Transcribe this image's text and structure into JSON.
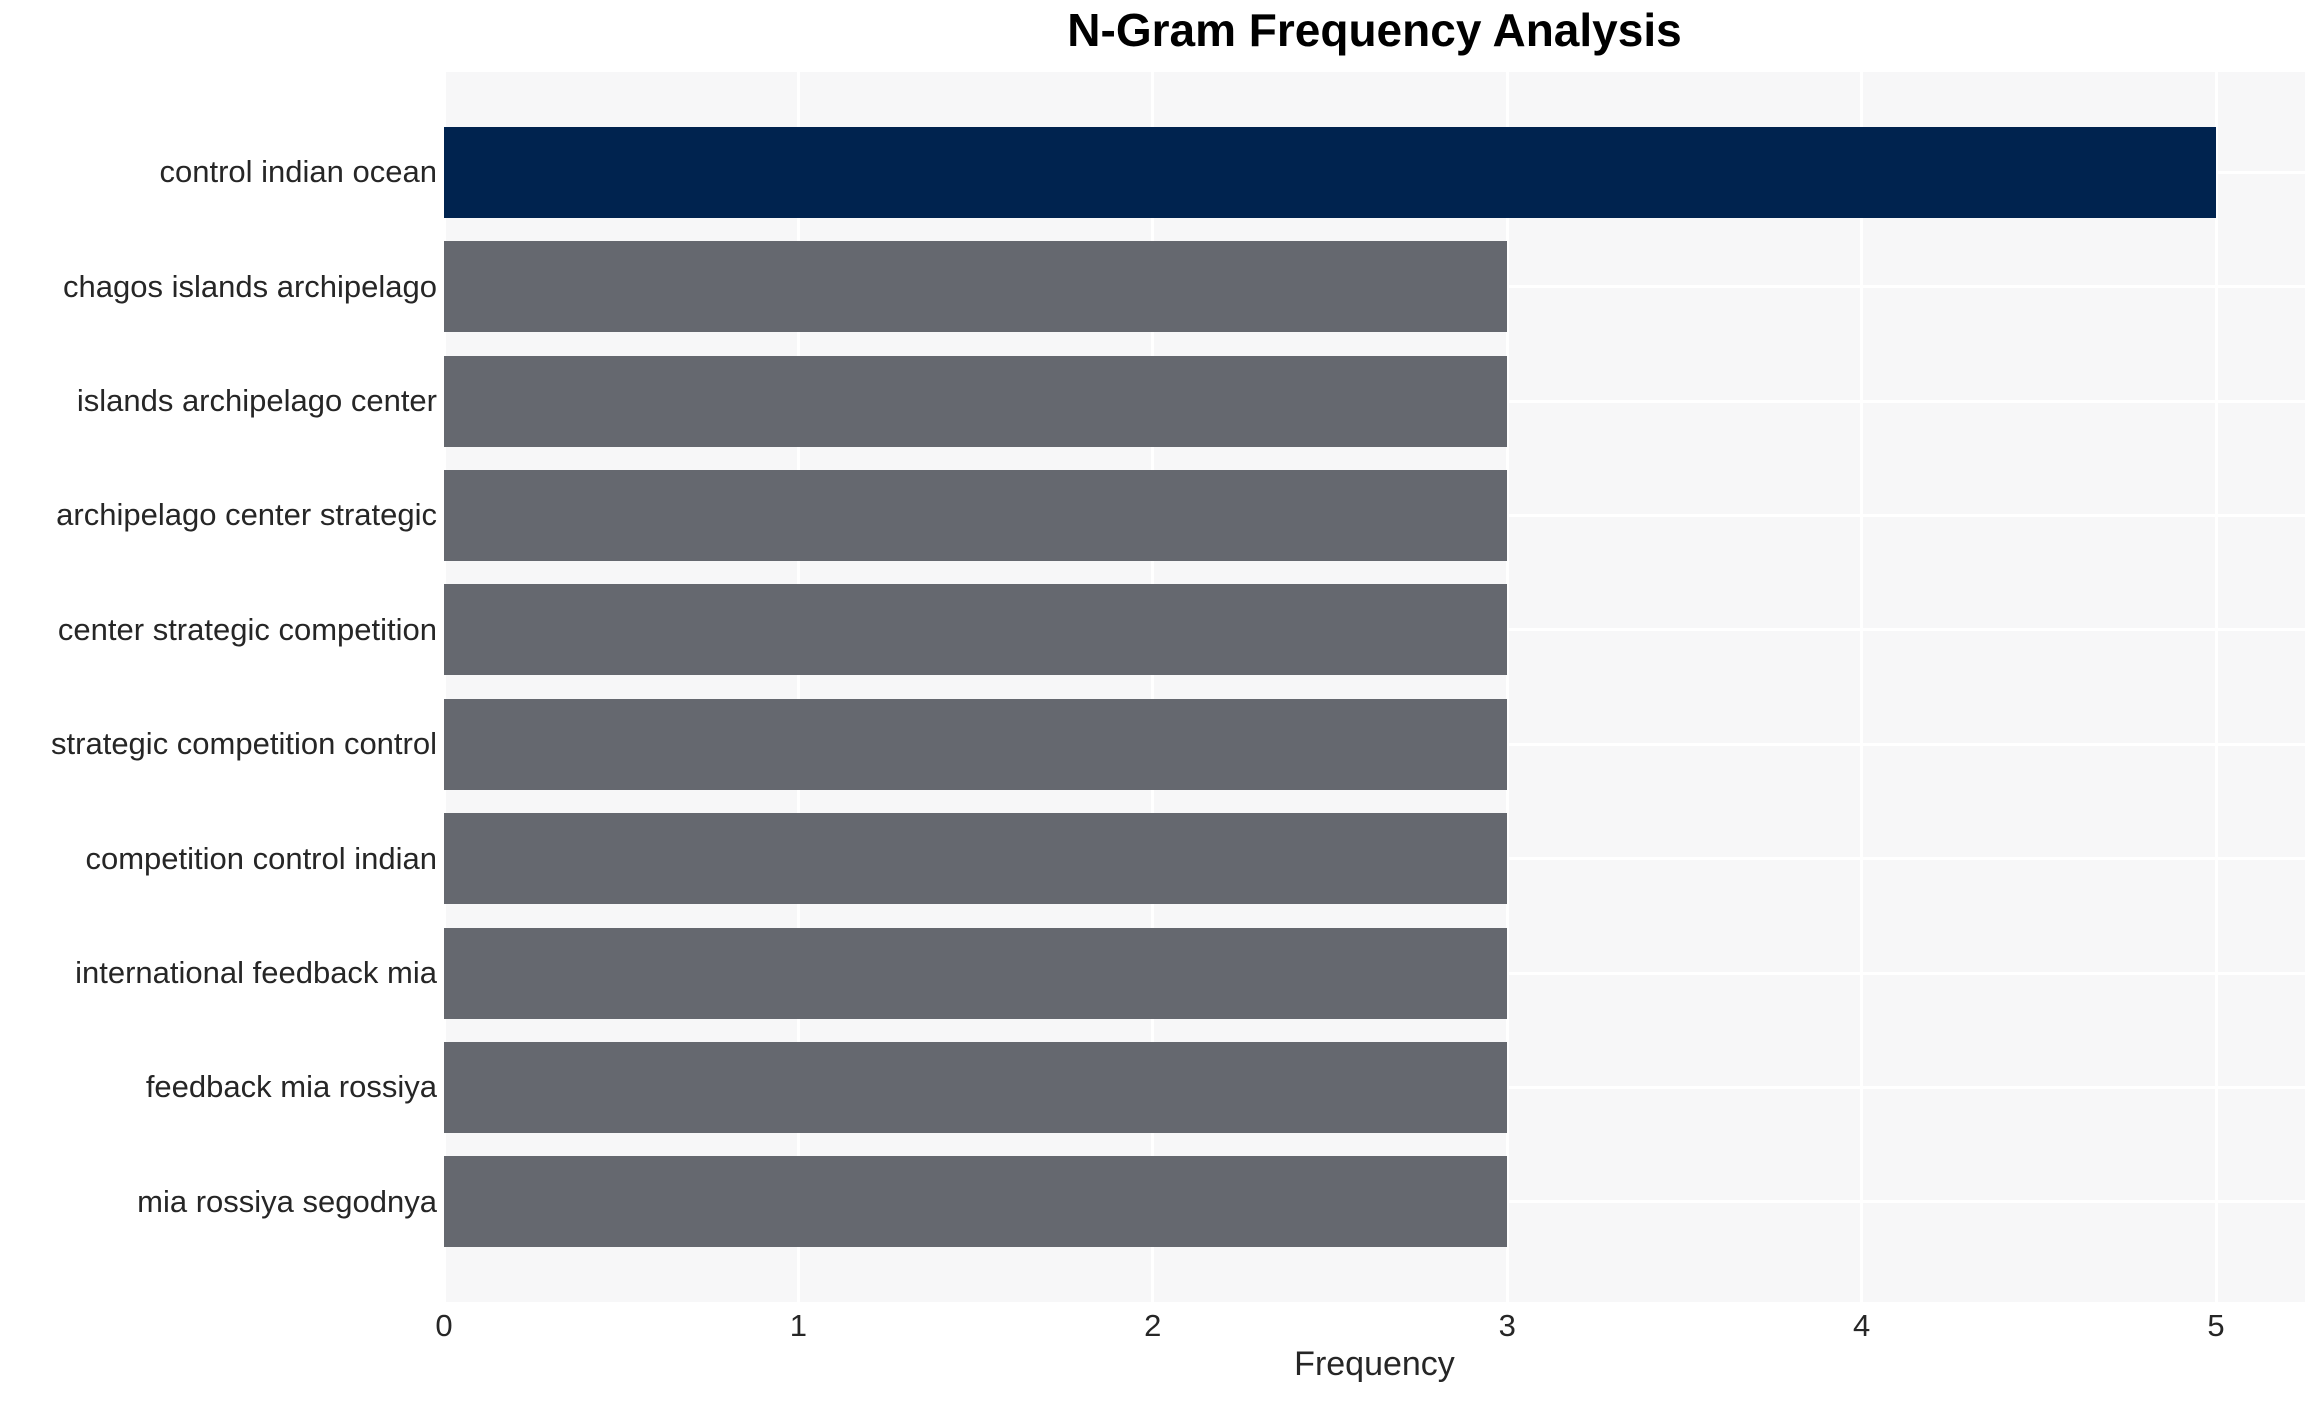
{
  "chart_data": {
    "type": "bar",
    "orientation": "horizontal",
    "title": "N-Gram Frequency Analysis",
    "xlabel": "Frequency",
    "ylabel": "",
    "categories": [
      "control indian ocean",
      "chagos islands archipelago",
      "islands archipelago center",
      "archipelago center strategic",
      "center strategic competition",
      "strategic competition control",
      "competition control indian",
      "international feedback mia",
      "feedback mia rossiya",
      "mia rossiya segodnya"
    ],
    "values": [
      5,
      3,
      3,
      3,
      3,
      3,
      3,
      3,
      3,
      3
    ],
    "bar_colors": [
      "#00234F",
      "#65686F",
      "#65686F",
      "#65686F",
      "#65686F",
      "#65686F",
      "#65686F",
      "#65686F",
      "#65686F",
      "#65686F"
    ],
    "xlim": [
      0,
      5.25
    ],
    "xticks": [
      0,
      1,
      2,
      3,
      4,
      5
    ],
    "grid": true,
    "legend_position": "none",
    "colors": {
      "highlight_bar": "#00234F",
      "default_bar": "#65686F",
      "plot_background": "#F7F7F8",
      "gridline": "#FFFFFF",
      "axis_text": "#262626",
      "title_text": "#000000",
      "page_background": "#FFFFFF"
    }
  }
}
